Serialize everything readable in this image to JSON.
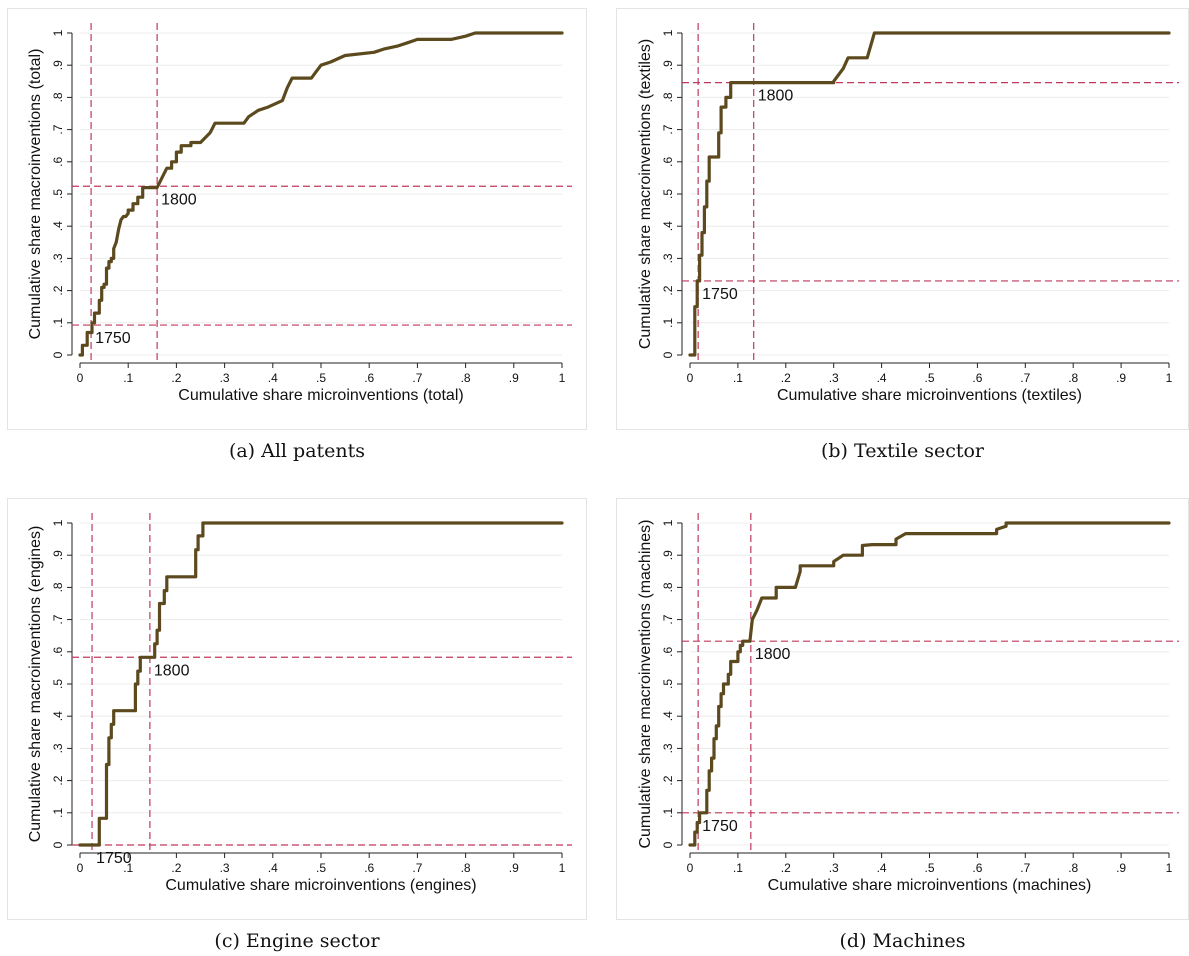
{
  "chart_data": [
    {
      "type": "line",
      "xlabel": "Cumulative share microinventions (total)",
      "ylabel": "Cumulative share macroinventions (total)",
      "caption": "(a) All patents",
      "xlim": [
        0,
        1
      ],
      "ylim": [
        0,
        1
      ],
      "xticks": [
        "0",
        ".1",
        ".2",
        ".3",
        ".4",
        ".5",
        ".6",
        ".7",
        ".8",
        ".9",
        "1"
      ],
      "yticks": [
        "0",
        ".1",
        ".2",
        ".3",
        ".4",
        ".5",
        ".6",
        ".7",
        ".8",
        ".9",
        "1"
      ],
      "grid": true,
      "line_color": "#5c4a1e",
      "ref_color": "#c0385c",
      "series": [
        {
          "x": [
            0,
            0.005,
            0.005,
            0.015,
            0.015,
            0.025,
            0.025,
            0.03,
            0.03,
            0.04,
            0.04,
            0.045,
            0.045,
            0.05,
            0.05,
            0.055,
            0.055,
            0.06,
            0.06,
            0.065,
            0.065,
            0.07,
            0.07,
            0.075,
            0.08,
            0.085,
            0.09,
            0.095,
            0.1,
            0.1,
            0.11,
            0.11,
            0.12,
            0.12,
            0.13,
            0.13,
            0.14,
            0.14,
            0.16,
            0.17,
            0.18,
            0.19,
            0.19,
            0.2,
            0.2,
            0.21,
            0.21,
            0.23,
            0.23,
            0.25,
            0.25,
            0.27,
            0.28,
            0.29,
            0.29,
            0.34,
            0.35,
            0.37,
            0.39,
            0.39,
            0.42,
            0.43,
            0.44,
            0.46,
            0.48,
            0.49,
            0.5,
            0.52,
            0.55,
            0.61,
            0.63,
            0.66,
            0.68,
            0.7,
            0.77,
            0.8,
            0.82,
            1.0
          ],
          "y": [
            0,
            0,
            0.03,
            0.03,
            0.07,
            0.07,
            0.1,
            0.1,
            0.13,
            0.13,
            0.17,
            0.17,
            0.21,
            0.21,
            0.22,
            0.22,
            0.27,
            0.27,
            0.29,
            0.29,
            0.3,
            0.3,
            0.33,
            0.35,
            0.39,
            0.42,
            0.43,
            0.43,
            0.44,
            0.45,
            0.45,
            0.47,
            0.47,
            0.49,
            0.49,
            0.52,
            0.52,
            0.52,
            0.52,
            0.55,
            0.58,
            0.58,
            0.6,
            0.6,
            0.63,
            0.63,
            0.65,
            0.65,
            0.66,
            0.66,
            0.66,
            0.69,
            0.72,
            0.72,
            0.72,
            0.72,
            0.74,
            0.76,
            0.77,
            0.77,
            0.79,
            0.83,
            0.86,
            0.86,
            0.86,
            0.88,
            0.9,
            0.91,
            0.93,
            0.94,
            0.95,
            0.96,
            0.97,
            0.98,
            0.98,
            0.99,
            1.0,
            1.0
          ]
        }
      ],
      "ref_lines": [
        {
          "label": "1750",
          "x": 0.023,
          "y": 0.093
        },
        {
          "label": "1800",
          "x": 0.16,
          "y": 0.524
        }
      ]
    },
    {
      "type": "line",
      "xlabel": "Cumulative share microinventions (textiles)",
      "ylabel": "Cumulative share macroinventions (textiles)",
      "caption": "(b) Textile sector",
      "xlim": [
        0,
        1
      ],
      "ylim": [
        0,
        1
      ],
      "xticks": [
        "0",
        ".1",
        ".2",
        ".3",
        ".4",
        ".5",
        ".6",
        ".7",
        ".8",
        ".9",
        "1"
      ],
      "yticks": [
        "0",
        ".1",
        ".2",
        ".3",
        ".4",
        ".5",
        ".6",
        ".7",
        ".8",
        ".9",
        "1"
      ],
      "grid": true,
      "line_color": "#5c4a1e",
      "ref_color": "#c0385c",
      "series": [
        {
          "x": [
            0,
            0.01,
            0.01,
            0.015,
            0.015,
            0.02,
            0.02,
            0.025,
            0.025,
            0.03,
            0.03,
            0.035,
            0.035,
            0.04,
            0.04,
            0.06,
            0.06,
            0.065,
            0.065,
            0.075,
            0.075,
            0.085,
            0.085,
            0.095,
            0.095,
            0.3,
            0.3,
            0.32,
            0.33,
            0.37,
            0.385,
            1.0
          ],
          "y": [
            0,
            0,
            0.15,
            0.15,
            0.23,
            0.23,
            0.31,
            0.31,
            0.38,
            0.38,
            0.46,
            0.46,
            0.54,
            0.54,
            0.615,
            0.615,
            0.69,
            0.69,
            0.77,
            0.77,
            0.8,
            0.8,
            0.846,
            0.846,
            0.846,
            0.846,
            0.85,
            0.89,
            0.923,
            0.923,
            1.0,
            1.0
          ]
        }
      ],
      "ref_lines": [
        {
          "label": "1750",
          "x": 0.017,
          "y": 0.23
        },
        {
          "label": "1800",
          "x": 0.133,
          "y": 0.846
        }
      ]
    },
    {
      "type": "line",
      "xlabel": "Cumulative share microinventions (engines)",
      "ylabel": "Cumulative share macroinventions (engines)",
      "caption": "(c) Engine sector",
      "xlim": [
        0,
        1
      ],
      "ylim": [
        0,
        1
      ],
      "xticks": [
        "0",
        ".1",
        ".2",
        ".3",
        ".4",
        ".5",
        ".6",
        ".7",
        ".8",
        ".9",
        "1"
      ],
      "yticks": [
        "0",
        ".1",
        ".2",
        ".3",
        ".4",
        ".5",
        ".6",
        ".7",
        ".8",
        ".9",
        "1"
      ],
      "grid": true,
      "line_color": "#5c4a1e",
      "ref_color": "#c0385c",
      "series": [
        {
          "x": [
            0,
            0.04,
            0.04,
            0.055,
            0.055,
            0.06,
            0.06,
            0.065,
            0.065,
            0.07,
            0.07,
            0.08,
            0.08,
            0.115,
            0.115,
            0.12,
            0.12,
            0.125,
            0.125,
            0.155,
            0.155,
            0.16,
            0.16,
            0.165,
            0.165,
            0.175,
            0.175,
            0.18,
            0.18,
            0.24,
            0.24,
            0.245,
            0.245,
            0.255,
            0.255,
            1.0
          ],
          "y": [
            0,
            0,
            0.083,
            0.083,
            0.25,
            0.25,
            0.333,
            0.333,
            0.375,
            0.375,
            0.417,
            0.417,
            0.417,
            0.417,
            0.5,
            0.5,
            0.54,
            0.54,
            0.583,
            0.583,
            0.625,
            0.625,
            0.667,
            0.667,
            0.75,
            0.75,
            0.79,
            0.79,
            0.833,
            0.833,
            0.917,
            0.917,
            0.96,
            0.96,
            1.0,
            1.0
          ]
        }
      ],
      "ref_lines": [
        {
          "label": "1750",
          "x": 0.025,
          "y": 0.0
        },
        {
          "label": "1800",
          "x": 0.145,
          "y": 0.583
        }
      ]
    },
    {
      "type": "line",
      "xlabel": "Cumulative share microinventions (machines)",
      "ylabel": "Cumulative share macroinventions (machines)",
      "caption": "(d) Machines",
      "xlim": [
        0,
        1
      ],
      "ylim": [
        0,
        1
      ],
      "xticks": [
        "0",
        ".1",
        ".2",
        ".3",
        ".4",
        ".5",
        ".6",
        ".7",
        ".8",
        ".9",
        "1"
      ],
      "yticks": [
        "0",
        ".1",
        ".2",
        ".3",
        ".4",
        ".5",
        ".6",
        ".7",
        ".8",
        ".9",
        "1"
      ],
      "grid": true,
      "line_color": "#5c4a1e",
      "ref_color": "#c0385c",
      "series": [
        {
          "x": [
            0,
            0.01,
            0.01,
            0.015,
            0.015,
            0.02,
            0.02,
            0.035,
            0.035,
            0.04,
            0.04,
            0.045,
            0.045,
            0.05,
            0.05,
            0.055,
            0.055,
            0.06,
            0.06,
            0.065,
            0.065,
            0.07,
            0.07,
            0.08,
            0.08,
            0.085,
            0.085,
            0.1,
            0.1,
            0.105,
            0.105,
            0.11,
            0.11,
            0.125,
            0.125,
            0.13,
            0.14,
            0.15,
            0.165,
            0.165,
            0.18,
            0.18,
            0.22,
            0.22,
            0.23,
            0.23,
            0.3,
            0.3,
            0.32,
            0.32,
            0.36,
            0.36,
            0.38,
            0.38,
            0.43,
            0.43,
            0.45,
            0.45,
            0.64,
            0.64,
            0.66,
            0.66,
            0.67,
            0.67,
            1.0
          ],
          "y": [
            0,
            0,
            0.04,
            0.04,
            0.07,
            0.07,
            0.1,
            0.1,
            0.17,
            0.17,
            0.23,
            0.23,
            0.27,
            0.27,
            0.33,
            0.33,
            0.37,
            0.37,
            0.43,
            0.43,
            0.47,
            0.47,
            0.5,
            0.5,
            0.53,
            0.53,
            0.57,
            0.57,
            0.6,
            0.6,
            0.62,
            0.62,
            0.633,
            0.633,
            0.633,
            0.7,
            0.73,
            0.767,
            0.767,
            0.767,
            0.767,
            0.8,
            0.8,
            0.8,
            0.85,
            0.867,
            0.867,
            0.88,
            0.9,
            0.9,
            0.9,
            0.93,
            0.933,
            0.933,
            0.933,
            0.95,
            0.967,
            0.967,
            0.967,
            0.98,
            0.99,
            1.0,
            1.0,
            1.0,
            1.0
          ]
        }
      ],
      "ref_lines": [
        {
          "label": "1750",
          "x": 0.017,
          "y": 0.1
        },
        {
          "label": "1800",
          "x": 0.127,
          "y": 0.633
        }
      ]
    }
  ]
}
